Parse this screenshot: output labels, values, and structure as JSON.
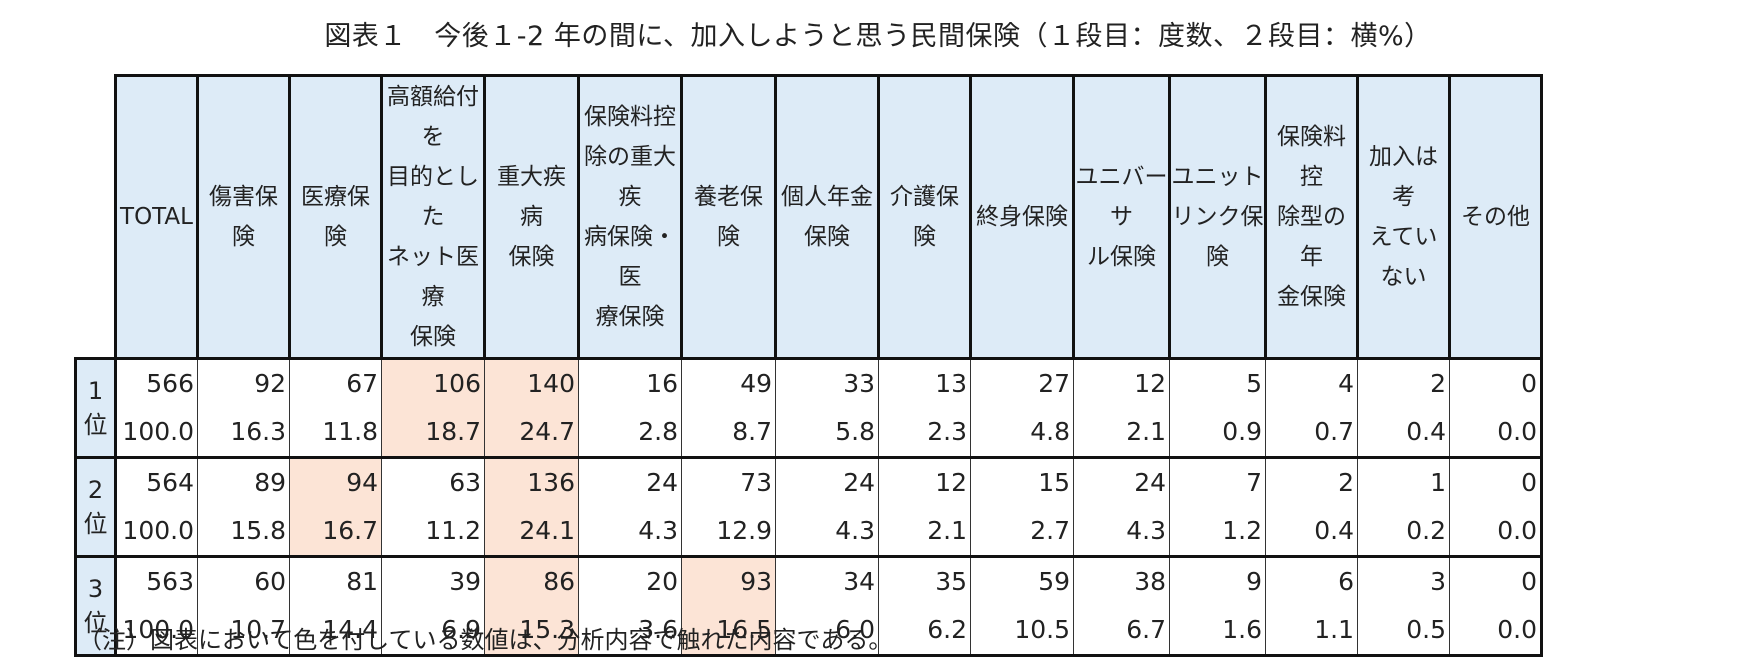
{
  "title": "図表１　今後１-2 年の間に、加入しようと思う民間保険（１段目：度数、２段目：横%）",
  "columns": [
    {
      "lines": [
        "TOTAL"
      ],
      "width": 82
    },
    {
      "lines": [
        "傷害保険"
      ],
      "width": 92
    },
    {
      "lines": [
        "医療保険"
      ],
      "width": 92
    },
    {
      "lines": [
        "高額給付を",
        "目的とした",
        "ネット医療",
        "保険"
      ],
      "width": 103
    },
    {
      "lines": [
        "重大疾病",
        "保険"
      ],
      "width": 94
    },
    {
      "lines": [
        "保険料控",
        "除の重大疾",
        "病保険・医",
        "療保険"
      ],
      "width": 103
    },
    {
      "lines": [
        "養老保険"
      ],
      "width": 94
    },
    {
      "lines": [
        "個人年金",
        "保険"
      ],
      "width": 103
    },
    {
      "lines": [
        "介護保険"
      ],
      "width": 92
    },
    {
      "lines": [
        "終身保険"
      ],
      "width": 103
    },
    {
      "lines": [
        "ユニバーサ",
        "ル保険"
      ],
      "width": 96
    },
    {
      "lines": [
        "ユニット",
        "リンク保険"
      ],
      "width": 96
    },
    {
      "lines": [
        "保険料控",
        "除型の年",
        "金保険"
      ],
      "width": 92
    },
    {
      "lines": [
        "加入は考",
        "えていない"
      ],
      "width": 92
    },
    {
      "lines": [
        "その他"
      ],
      "width": 92
    }
  ],
  "rows": [
    {
      "label": "1位",
      "counts": [
        "566",
        "92",
        "67",
        "106",
        "140",
        "16",
        "49",
        "33",
        "13",
        "27",
        "12",
        "5",
        "4",
        "2",
        "0"
      ],
      "percents": [
        "100.0",
        "16.3",
        "11.8",
        "18.7",
        "24.7",
        "2.8",
        "8.7",
        "5.8",
        "2.3",
        "4.8",
        "2.1",
        "0.9",
        "0.7",
        "0.4",
        "0.0"
      ],
      "highlight": [
        3,
        4
      ]
    },
    {
      "label": "2位",
      "counts": [
        "564",
        "89",
        "94",
        "63",
        "136",
        "24",
        "73",
        "24",
        "12",
        "15",
        "24",
        "7",
        "2",
        "1",
        "0"
      ],
      "percents": [
        "100.0",
        "15.8",
        "16.7",
        "11.2",
        "24.1",
        "4.3",
        "12.9",
        "4.3",
        "2.1",
        "2.7",
        "4.3",
        "1.2",
        "0.4",
        "0.2",
        "0.0"
      ],
      "highlight": [
        2,
        4
      ]
    },
    {
      "label": "3位",
      "counts": [
        "563",
        "60",
        "81",
        "39",
        "86",
        "20",
        "93",
        "34",
        "35",
        "59",
        "38",
        "9",
        "6",
        "3",
        "0"
      ],
      "percents": [
        "100.0",
        "10.7",
        "14.4",
        "6.9",
        "15.3",
        "3.6",
        "16.5",
        "6.0",
        "6.2",
        "10.5",
        "6.7",
        "1.6",
        "1.1",
        "0.5",
        "0.0"
      ],
      "highlight": [
        4,
        6
      ]
    }
  ],
  "note": "（注）図表において色を付している数値は、分析内容で触れた内容である。",
  "colors": {
    "header_bg": "#ddebf7",
    "highlight_bg": "#fce4d6",
    "border": "#111111"
  }
}
